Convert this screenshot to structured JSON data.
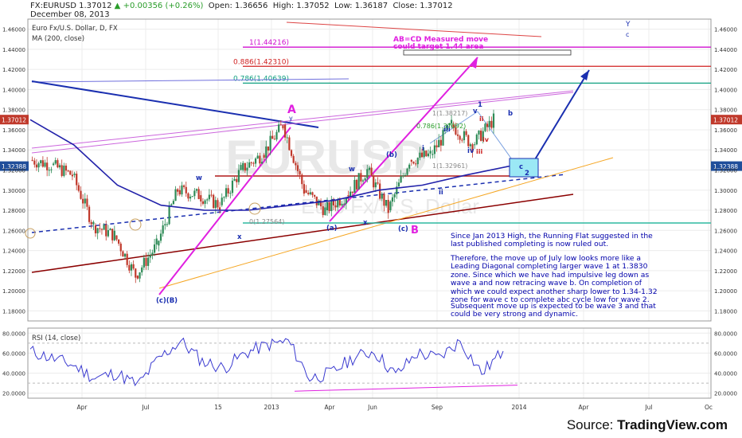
{
  "header": {
    "symbol": "FX:EURUSD",
    "last": "1.37012",
    "change": "+0.00356 (+0.26%)",
    "open_label": "Open:",
    "open": "1.36656",
    "high_label": "High:",
    "high": "1.37052",
    "low_label": "Low:",
    "low": "1.36187",
    "close_label": "Close:",
    "close": "1.37012",
    "date": "December 08, 2013"
  },
  "legend": {
    "instrument": "Euro Fx/U.S. Dollar, D, FX",
    "ma": "MA (200, close)",
    "rsi": "RSI (14, close)"
  },
  "watermark": {
    "symbol": "EURUSD",
    "name": "Euro Fx/U.S. Dollar"
  },
  "colors": {
    "candle_up": "#2e8b57",
    "candle_down": "#c0392b",
    "ma": "#2222aa",
    "magenta": "#e020e0",
    "navy": "#0000aa",
    "darkred": "#8b0000",
    "orange": "#f5a623",
    "teal": "#2fb9a0"
  },
  "fib_levels": [
    {
      "label": "1(1.44216)",
      "value": 1.44216,
      "color": "#d010d0"
    },
    {
      "label": "0.886(1.42310)",
      "value": 1.4231,
      "color": "#d02020"
    },
    {
      "label": "0.786(1.40639)",
      "value": 1.40639,
      "color": "#10a080"
    }
  ],
  "price_badges": [
    {
      "text": "1.37012",
      "value": 1.37012,
      "color": "#c0392b"
    },
    {
      "text": "1.32388",
      "value": 1.32388,
      "color": "#1f4e9a"
    }
  ],
  "annotation_box": {
    "line1": "AB=CD Measured move",
    "line2": "could target 1.44 area"
  },
  "wave_labels": {
    "A": "A",
    "B": "B",
    "y_top": "y",
    "ca_B": "(c)(B)",
    "w1": "w",
    "x1": "x",
    "a_paren": "(a)",
    "w2": "w",
    "x2": "x",
    "b_paren": "(b)",
    "c_paren": "(c)",
    "i": "i",
    "ii": "ii",
    "iii": "iii",
    "iv": "iv",
    "v": "v",
    "one": "1",
    "two": "2",
    "b_small": "b",
    "c_small": "c",
    "Y": "Y",
    "c_top": "c",
    "r_ii": "ii",
    "r_iii": "iii",
    "r_iv": "iv"
  },
  "fib_small": {
    "l1": "1(1.38217)",
    "l786": "0.786(1.37092)",
    "l1b": "1(1.32961)",
    "l0": "0(1.27564)"
  },
  "chart_data": [
    {
      "type": "line",
      "title": "Euro Fx/U.S. Dollar, D, FX",
      "series": [
        {
          "name": "FX:EURUSD",
          "x": [
            "2012-02",
            "2012-03",
            "2012-04",
            "2012-05",
            "2012-06",
            "2012-07",
            "2012-08",
            "2012-09",
            "2012-10",
            "2012-11",
            "2012-12",
            "2013-01",
            "2013-02",
            "2013-03",
            "2013-04",
            "2013-05",
            "2013-06",
            "2013-07",
            "2013-08",
            "2013-09",
            "2013-10",
            "2013-11",
            "2013-12"
          ],
          "values": [
            1.33,
            1.325,
            1.315,
            1.265,
            1.255,
            1.215,
            1.245,
            1.3,
            1.295,
            1.285,
            1.32,
            1.335,
            1.365,
            1.3,
            1.28,
            1.295,
            1.32,
            1.28,
            1.33,
            1.335,
            1.365,
            1.345,
            1.37012
          ]
        },
        {
          "name": "MA (200, close)",
          "x": [
            "2012-02",
            "2012-04",
            "2012-06",
            "2012-08",
            "2012-10",
            "2012-12",
            "2013-02",
            "2013-04",
            "2013-06",
            "2013-08",
            "2013-10",
            "2013-12"
          ],
          "values": [
            1.37,
            1.345,
            1.305,
            1.285,
            1.28,
            1.28,
            1.285,
            1.29,
            1.3,
            1.305,
            1.315,
            1.32388
          ]
        }
      ],
      "ylim": [
        1.17,
        1.47
      ],
      "y_ticks": [
        "1.18000",
        "1.20000",
        "1.22000",
        "1.24000",
        "1.26000",
        "1.28000",
        "1.30000",
        "1.32000",
        "1.34000",
        "1.36000",
        "1.38000",
        "1.40000",
        "1.42000",
        "1.44000",
        "1.46000"
      ],
      "x_ticks": [
        "Apr",
        "Jul",
        "15",
        "2013",
        "Apr",
        "Jun",
        "Sep",
        "2014",
        "Apr",
        "Jul",
        "Oc"
      ],
      "grid": true
    },
    {
      "type": "line",
      "title": "RSI (14, close)",
      "series": [
        {
          "name": "RSI (14, close)",
          "x": [
            "2012-02",
            "2012-03",
            "2012-04",
            "2012-05",
            "2012-06",
            "2012-07",
            "2012-08",
            "2012-09",
            "2012-10",
            "2012-11",
            "2012-12",
            "2013-01",
            "2013-02",
            "2013-03",
            "2013-04",
            "2013-05",
            "2013-06",
            "2013-07",
            "2013-08",
            "2013-09",
            "2013-10",
            "2013-11",
            "2013-12"
          ],
          "values": [
            62,
            55,
            48,
            35,
            40,
            28,
            55,
            72,
            52,
            45,
            60,
            68,
            72,
            35,
            40,
            55,
            62,
            38,
            60,
            55,
            72,
            40,
            62
          ]
        }
      ],
      "ylim": [
        15,
        85
      ],
      "y_ticks": [
        "20.0000",
        "40.0000",
        "60.0000",
        "80.0000"
      ],
      "grid": true
    }
  ],
  "text_blocks": [
    "Since Jan 2013 High, the Running Flat suggested in the last published completing is now ruled out.",
    "Therefore, the move up of July low looks more like a Leading Diagonal completing larger wave 1 at 1.3830 zone. Since which we have had impulsive leg down as wave a and now retracing wave b. On completion of which we could expect another sharp lower to 1.34-1.32 zone for wave c to complete abc cycle low for wave 2.",
    "Subsequent move up is expected to be wave 3 and that could be very strong and dynamic."
  ],
  "source": {
    "prefix": "Source: ",
    "brand": "TradingView.com"
  }
}
